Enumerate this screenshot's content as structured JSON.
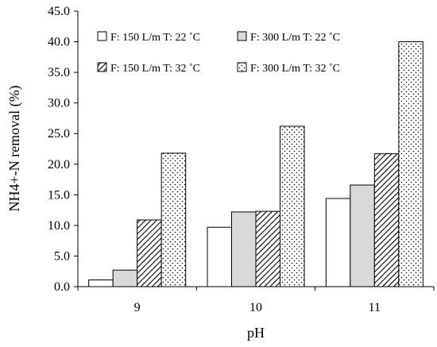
{
  "chart_data": {
    "type": "bar",
    "title": "",
    "xlabel": "pH",
    "ylabel": "NH4+-N removal (%)",
    "categories": [
      "9",
      "10",
      "11"
    ],
    "ylim": [
      0,
      45
    ],
    "yticks": [
      "0.0",
      "5.0",
      "10.0",
      "15.0",
      "20.0",
      "25.0",
      "30.0",
      "35.0",
      "40.0",
      "45.0"
    ],
    "legend_position": "top-left",
    "grid": false,
    "series": [
      {
        "name": "F: 150 L/m T: 22 ˚C",
        "fill": "white",
        "values": [
          1.1,
          9.7,
          14.4
        ]
      },
      {
        "name": "F: 300 L/m T: 22 ˚C",
        "fill": "gray",
        "values": [
          2.7,
          12.2,
          16.6
        ]
      },
      {
        "name": "F: 150 L/m T: 32 ˚C",
        "fill": "hatch",
        "values": [
          10.9,
          12.3,
          21.7
        ]
      },
      {
        "name": "F: 300 L/m T: 32 ˚C",
        "fill": "dots",
        "values": [
          21.8,
          26.2,
          40.0
        ]
      }
    ]
  },
  "colors": {
    "gray_fill": "#d9d9d9",
    "outline": "#000000"
  }
}
